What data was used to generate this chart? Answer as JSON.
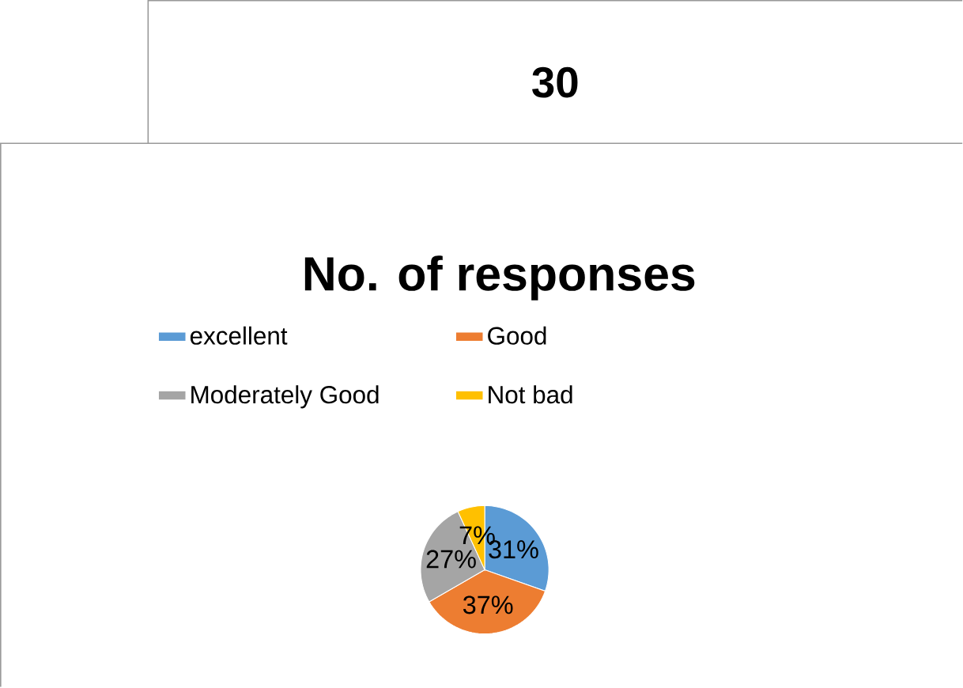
{
  "chart_data": {
    "type": "pie",
    "title": "No. of responses",
    "annotations": [
      "30"
    ],
    "categories": [
      "excellent",
      "Good",
      "Moderately Good",
      "Not bad"
    ],
    "values": [
      31,
      37,
      27,
      7
    ],
    "colors": [
      "#5b9bd5",
      "#ed7d31",
      "#a5a5a5",
      "#ffc000"
    ],
    "value_labels": [
      "31%",
      "37%",
      "27%",
      "7%"
    ],
    "legend": "top"
  }
}
